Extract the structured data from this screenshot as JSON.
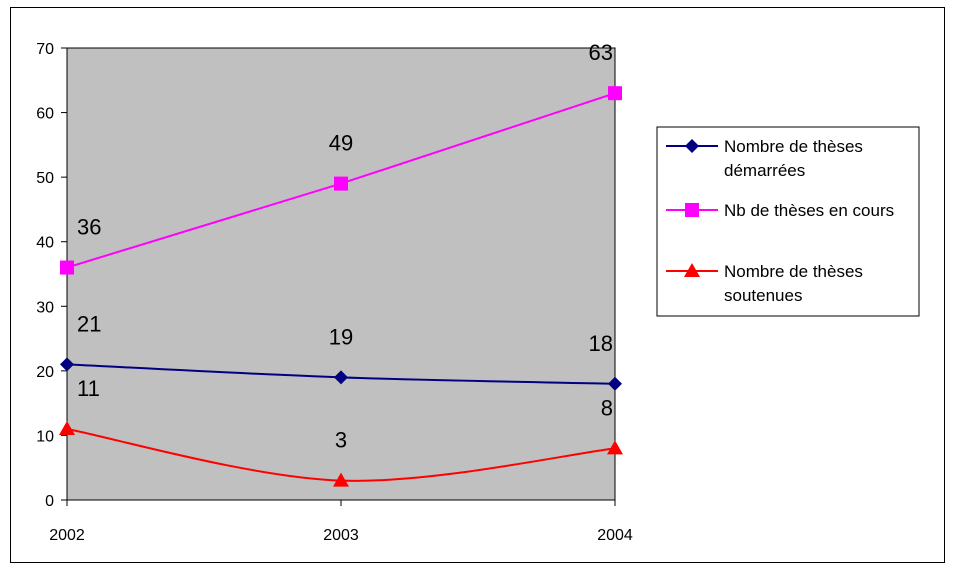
{
  "chart_data": {
    "type": "line",
    "categories": [
      "2002",
      "2003",
      "2004"
    ],
    "ylim": [
      0,
      70
    ],
    "yticks": [
      0,
      10,
      20,
      30,
      40,
      50,
      60,
      70
    ],
    "grid": false,
    "plot_background": "#c0c0c0",
    "legend_position": "right",
    "series": [
      {
        "name": "Nombre de thèses démarrées",
        "name_lines": [
          "Nombre de thèses",
          "démarrées"
        ],
        "values": [
          21,
          19,
          18
        ],
        "color": "#000080",
        "marker": "diamond",
        "smooth": true
      },
      {
        "name": "Nb de thèses en cours",
        "name_lines": [
          "Nb de thèses en cours"
        ],
        "values": [
          36,
          49,
          63
        ],
        "color": "#ff00ff",
        "marker": "square",
        "smooth": false
      },
      {
        "name": "Nombre de thèses soutenues",
        "name_lines": [
          "Nombre de thèses",
          "soutenues"
        ],
        "values": [
          11,
          3,
          8
        ],
        "color": "#ff0000",
        "marker": "triangle",
        "smooth": true
      }
    ]
  }
}
